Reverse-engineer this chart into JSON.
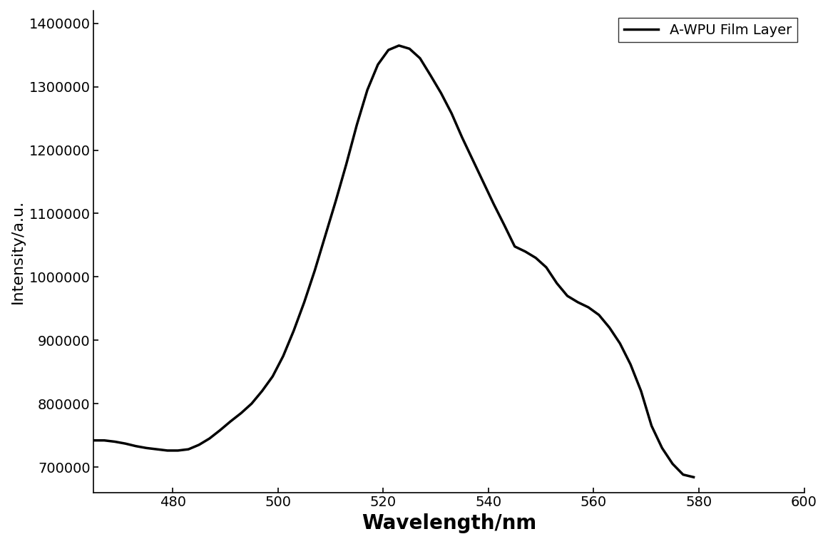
{
  "x_data": [
    465,
    467,
    469,
    471,
    473,
    475,
    477,
    479,
    481,
    483,
    485,
    487,
    489,
    491,
    493,
    495,
    497,
    499,
    501,
    503,
    505,
    507,
    509,
    511,
    513,
    515,
    517,
    519,
    521,
    523,
    525,
    527,
    529,
    531,
    533,
    535,
    537,
    539,
    541,
    543,
    545,
    547,
    549,
    551,
    553,
    555,
    557,
    559,
    561,
    563,
    565,
    567,
    569,
    571,
    573,
    575,
    577,
    579
  ],
  "y_data": [
    742000,
    742000,
    740000,
    737000,
    733000,
    730000,
    728000,
    726000,
    726000,
    728000,
    735000,
    745000,
    758000,
    772000,
    785000,
    800000,
    820000,
    843000,
    875000,
    915000,
    960000,
    1010000,
    1065000,
    1120000,
    1178000,
    1240000,
    1295000,
    1335000,
    1358000,
    1365000,
    1360000,
    1345000,
    1318000,
    1290000,
    1258000,
    1220000,
    1185000,
    1150000,
    1115000,
    1082000,
    1048000,
    1040000,
    1030000,
    1015000,
    990000,
    970000,
    960000,
    952000,
    940000,
    920000,
    895000,
    862000,
    820000,
    765000,
    730000,
    705000,
    688000,
    684000
  ],
  "xlim": [
    465,
    600
  ],
  "ylim": [
    660000,
    1420000
  ],
  "xticks": [
    480,
    500,
    520,
    540,
    560,
    580,
    600
  ],
  "yticks": [
    700000,
    800000,
    900000,
    1000000,
    1100000,
    1200000,
    1300000,
    1400000
  ],
  "xlabel": "Wavelength/nm",
  "ylabel": "Intensity/a.u.",
  "legend_label": "A-WPU Film Layer",
  "line_color": "#000000",
  "line_width": 2.5,
  "background_color": "#ffffff",
  "xlabel_fontsize": 20,
  "ylabel_fontsize": 16,
  "tick_fontsize": 14,
  "legend_fontsize": 14
}
